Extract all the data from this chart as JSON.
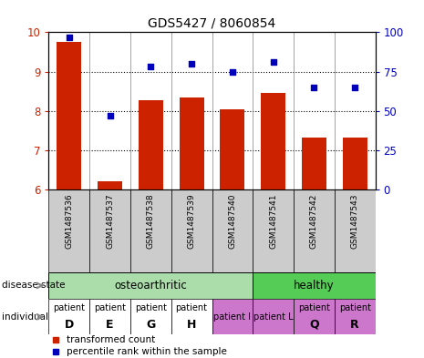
{
  "title": "GDS5427 / 8060854",
  "samples": [
    "GSM1487536",
    "GSM1487537",
    "GSM1487538",
    "GSM1487539",
    "GSM1487540",
    "GSM1487541",
    "GSM1487542",
    "GSM1487543"
  ],
  "bar_values": [
    9.75,
    6.22,
    8.27,
    8.35,
    8.05,
    8.47,
    7.33,
    7.33
  ],
  "scatter_values": [
    97.0,
    47.0,
    78.0,
    80.0,
    75.0,
    81.0,
    65.0,
    65.0
  ],
  "ylim_left": [
    6,
    10
  ],
  "ylim_right": [
    0,
    100
  ],
  "yticks_left": [
    6,
    7,
    8,
    9,
    10
  ],
  "yticks_right": [
    0,
    25,
    50,
    75,
    100
  ],
  "bar_color": "#cc2200",
  "scatter_color": "#0000bb",
  "disease_state_color_osteo": "#aaddaa",
  "disease_state_color_healthy": "#55cc55",
  "individual_colors_white": [
    "#ffffff",
    "#ffffff",
    "#ffffff",
    "#ffffff"
  ],
  "individual_colors_pink": [
    "#dd88dd",
    "#dd88dd",
    "#dd88dd",
    "#dd88dd"
  ],
  "ind_labels_white": [
    "patient\nD",
    "patient\nE",
    "patient\nG",
    "patient\nH"
  ],
  "ind_labels_pink": [
    "patient I",
    "patient L",
    "patient\nQ",
    "patient\nR"
  ],
  "legend_red_label": "transformed count",
  "legend_blue_label": "percentile rank within the sample",
  "sample_bg_color": "#cccccc",
  "grid_color": "#333333"
}
